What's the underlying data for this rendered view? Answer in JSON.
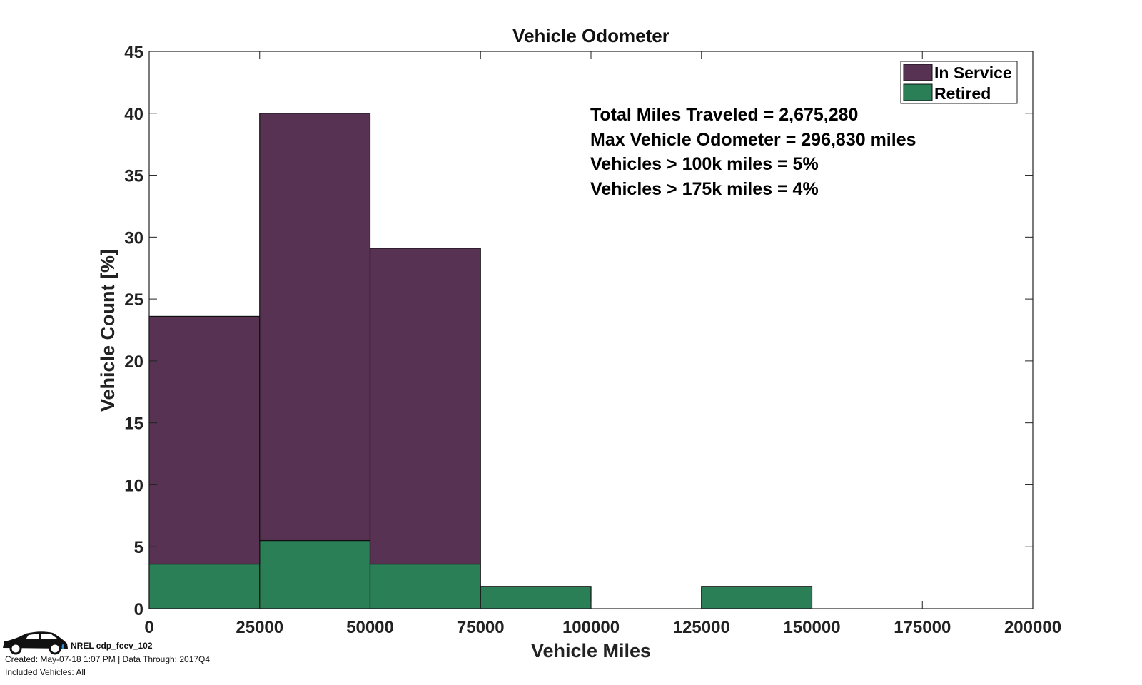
{
  "chart_data": {
    "type": "bar",
    "stacked": true,
    "title": "Vehicle Odometer",
    "xlabel": "Vehicle Miles",
    "ylabel": "Vehicle Count [%]",
    "bin_edges": [
      0,
      25000,
      50000,
      75000,
      100000,
      125000,
      150000,
      175000,
      200000
    ],
    "xlim": [
      0,
      200000
    ],
    "ylim": [
      0,
      45
    ],
    "xticks": [
      "0",
      "25000",
      "50000",
      "75000",
      "100000",
      "125000",
      "150000",
      "175000",
      "200000"
    ],
    "yticks": [
      "0",
      "5",
      "10",
      "15",
      "20",
      "25",
      "30",
      "35",
      "40",
      "45"
    ],
    "grid": false,
    "legend_position": "top-right",
    "series": [
      {
        "name": "Retired",
        "color": "#2a7f57",
        "values": [
          3.6,
          5.5,
          3.6,
          1.8,
          0,
          1.8,
          0,
          0
        ]
      },
      {
        "name": "In Service",
        "color": "#583252",
        "values": [
          20.0,
          34.5,
          25.5,
          0,
          0,
          0,
          0,
          0
        ]
      }
    ],
    "legend": [
      "In Service",
      "Retired"
    ],
    "annotations": [
      "Total Miles Traveled = 2,675,280",
      "Max Vehicle Odometer = 296,830 miles",
      "Vehicles > 100k miles = 5%",
      "Vehicles > 175k miles = 4%"
    ]
  },
  "footer": {
    "logo_label": "NREL cdp_fcev_102",
    "created": "Created: May-07-18  1:07 PM | Data Through: 2017Q4",
    "included": "Included Vehicles: All"
  }
}
